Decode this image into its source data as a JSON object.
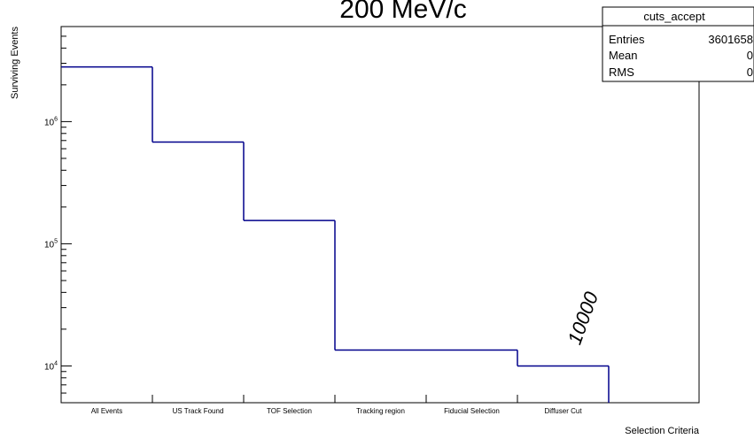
{
  "title": "200 MeV/c",
  "chart_data": {
    "type": "bar",
    "style": "step-histogram",
    "y_scale": "log",
    "categories": [
      "All Events",
      "US Track Found",
      "TOF Selection",
      "Tracking region",
      "Fiducial Selection",
      "Diffuser Cut"
    ],
    "values": [
      2800000,
      680000,
      155000,
      13500,
      13500,
      10000
    ],
    "xlabel": "Selection Criteria",
    "ylabel": "Surviving Events",
    "ylim": [
      5000,
      6000000
    ],
    "y_ticks": [
      {
        "value": 10000,
        "base": "10",
        "exp": "4"
      },
      {
        "value": 100000,
        "base": "10",
        "exp": "5"
      },
      {
        "value": 1000000,
        "base": "10",
        "exp": "6"
      }
    ],
    "line_color": "#00008b",
    "annotation": "10000",
    "stats_box": {
      "name": "cuts_accept",
      "rows": [
        {
          "label": "Entries",
          "value": "3601658"
        },
        {
          "label": "Mean",
          "value": "0"
        },
        {
          "label": "RMS",
          "value": "0"
        }
      ]
    }
  }
}
